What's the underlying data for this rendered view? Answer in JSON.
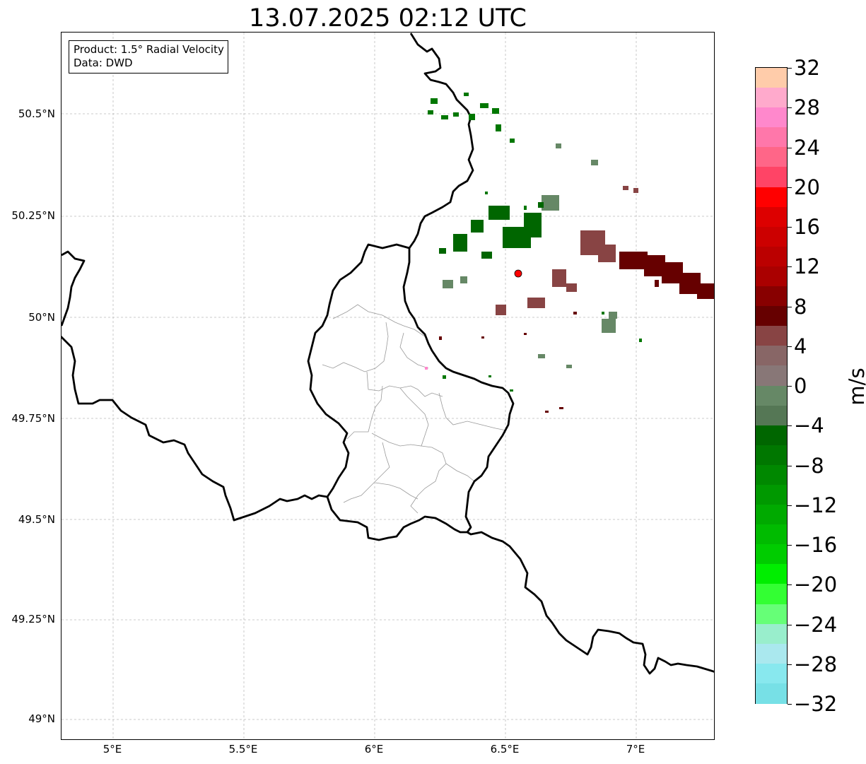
{
  "title": "13.07.2025 02:12 UTC",
  "info_box": {
    "line1": "Product: 1.5° Radial Velocity",
    "line2": "Data: DWD"
  },
  "latitude_ticks": [
    "50.5°N",
    "50.25°N",
    "50°N",
    "49.75°N",
    "49.5°N",
    "49.25°N",
    "49°N"
  ],
  "longitude_ticks": [
    "5°E",
    "5.5°E",
    "6°E",
    "6.5°E",
    "7°E"
  ],
  "radar_site_marker": {
    "label": "radar-site",
    "color": "#ff0000"
  },
  "colorbar": {
    "unit": "m/s",
    "tick_labels": [
      "32",
      "28",
      "24",
      "20",
      "16",
      "12",
      "8",
      "4",
      "0",
      "−4",
      "−8",
      "−12",
      "−16",
      "−20",
      "−24",
      "−28",
      "−32"
    ],
    "colors_top_to_bottom": [
      "#ffccaa",
      "#ffaacc",
      "#ff88cc",
      "#ff77aa",
      "#ff6688",
      "#ff4466",
      "#ff0000",
      "#dd0000",
      "#cc0000",
      "#bb0000",
      "#aa0000",
      "#880000",
      "#660000",
      "#884444",
      "#886666",
      "#887777",
      "#668866",
      "#557755",
      "#006600",
      "#007700",
      "#008800",
      "#009900",
      "#00aa00",
      "#00bb00",
      "#00cc00",
      "#00ee00",
      "#33ff33",
      "#66ff77",
      "#99eecc",
      "#aae8ee",
      "#88e8ee",
      "#77e0e6"
    ]
  },
  "colors": {
    "border": "#000000",
    "admin_lines": "#999999",
    "grid": "#bbbbbb",
    "velocity_approaching": "#006600",
    "velocity_receding": "#660000"
  }
}
